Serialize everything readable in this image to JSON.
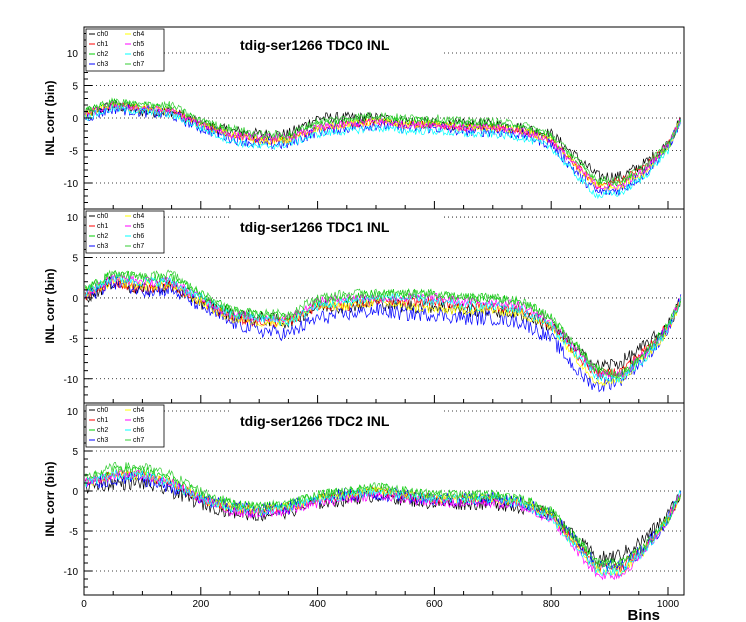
{
  "colors": {
    "ch0": "#000000",
    "ch1": "#ff0000",
    "ch2": "#00cc00",
    "ch3": "#0000ff",
    "ch4": "#ffff00",
    "ch5": "#ff00ff",
    "ch6": "#00ffff",
    "ch7": "#33cc33"
  },
  "chart_data": [
    {
      "type": "line",
      "title": "tdig-ser1266 TDC0 INL",
      "xlabel": "",
      "ylabel": "INL corr (bin)",
      "xlim": [
        0,
        1024
      ],
      "ylim": [
        -14,
        14
      ],
      "yticks": [
        -10,
        -5,
        0,
        5,
        10
      ],
      "xticks": [
        0,
        200,
        400,
        600,
        800,
        1000
      ],
      "grid": "horizontal dotted",
      "legend": "top-left",
      "x": [
        0,
        50,
        100,
        150,
        200,
        250,
        300,
        350,
        400,
        450,
        500,
        550,
        600,
        650,
        700,
        750,
        800,
        850,
        880,
        920,
        960,
        1000,
        1024
      ],
      "series": [
        {
          "name": "ch0",
          "values": [
            0.5,
            2.0,
            1.0,
            1.0,
            -1.0,
            -2.0,
            -2.5,
            -2.5,
            0,
            0,
            0,
            -0.5,
            -1.0,
            -1.0,
            -1.0,
            -1.5,
            -2.5,
            -6.5,
            -9.0,
            -9.0,
            -7.0,
            -4.0,
            0
          ]
        },
        {
          "name": "ch1",
          "values": [
            0.5,
            2.0,
            1.5,
            1.0,
            -1.0,
            -2.5,
            -3.5,
            -3.5,
            -1.5,
            -1.0,
            -0.5,
            -1.0,
            -1.0,
            -1.5,
            -1.5,
            -2.0,
            -3.5,
            -8.0,
            -10.5,
            -9.5,
            -7.5,
            -4.0,
            0
          ]
        },
        {
          "name": "ch2",
          "values": [
            1.0,
            2.5,
            2.0,
            1.5,
            -0.5,
            -2.0,
            -3.0,
            -3.0,
            -1.0,
            -0.5,
            0,
            -0.5,
            -0.5,
            -1.0,
            -1.0,
            -1.5,
            -3.0,
            -7.5,
            -10.0,
            -10.0,
            -8.0,
            -4.5,
            0
          ]
        },
        {
          "name": "ch3",
          "values": [
            0,
            1.5,
            1.0,
            0.5,
            -1.5,
            -3.0,
            -4.0,
            -4.0,
            -2.0,
            -1.5,
            -1.0,
            -1.5,
            -1.5,
            -2.0,
            -2.0,
            -2.5,
            -4.0,
            -9.0,
            -11.5,
            -11.0,
            -8.5,
            -4.5,
            0
          ]
        },
        {
          "name": "ch4",
          "values": [
            0.5,
            2.0,
            1.5,
            1.0,
            -1.0,
            -2.5,
            -3.5,
            -3.5,
            -1.5,
            -1.0,
            -0.5,
            -1.0,
            -1.0,
            -1.5,
            -1.5,
            -2.0,
            -3.5,
            -8.0,
            -10.5,
            -10.5,
            -8.5,
            -4.5,
            0
          ]
        },
        {
          "name": "ch5",
          "values": [
            0.5,
            2.0,
            1.5,
            1.0,
            -1.0,
            -2.5,
            -3.0,
            -3.0,
            -1.5,
            -1.0,
            -0.5,
            -1.0,
            -1.0,
            -1.5,
            -1.5,
            -2.0,
            -3.5,
            -8.0,
            -10.5,
            -10.5,
            -8.0,
            -4.0,
            0
          ]
        },
        {
          "name": "ch6",
          "values": [
            0,
            1.5,
            1.0,
            0.5,
            -1.5,
            -3.5,
            -4.5,
            -4.0,
            -2.5,
            -2.0,
            -1.5,
            -2.0,
            -2.0,
            -2.5,
            -2.5,
            -3.0,
            -4.5,
            -9.5,
            -12.0,
            -11.5,
            -9.0,
            -5.0,
            0
          ]
        },
        {
          "name": "ch7",
          "values": [
            1.0,
            2.5,
            2.0,
            2.0,
            -0.5,
            -1.5,
            -2.5,
            -2.5,
            -0.5,
            0,
            0.5,
            0,
            0,
            -0.5,
            -0.5,
            -1.0,
            -2.5,
            -7.0,
            -9.5,
            -9.5,
            -7.5,
            -4.0,
            0
          ]
        }
      ]
    },
    {
      "type": "line",
      "title": "tdig-ser1266 TDC1 INL",
      "xlabel": "",
      "ylabel": "INL corr (bin)",
      "xlim": [
        0,
        1024
      ],
      "ylim": [
        -13,
        11
      ],
      "yticks": [
        -10,
        -5,
        0,
        5,
        10
      ],
      "xticks": [
        0,
        200,
        400,
        600,
        800,
        1000
      ],
      "grid": "horizontal dotted",
      "legend": "top-left",
      "x": [
        0,
        50,
        100,
        150,
        200,
        250,
        300,
        350,
        400,
        450,
        500,
        550,
        600,
        650,
        700,
        750,
        800,
        850,
        880,
        920,
        960,
        1000,
        1024
      ],
      "series": [
        {
          "name": "ch0",
          "values": [
            0,
            2.0,
            1.0,
            1.5,
            -0.5,
            -2.0,
            -2.5,
            -3.0,
            -1.0,
            -1.0,
            -0.5,
            -1.0,
            -1.0,
            -1.5,
            -1.5,
            -2.0,
            -3.5,
            -7.0,
            -8.5,
            -8.0,
            -6.0,
            -3.5,
            0
          ]
        },
        {
          "name": "ch1",
          "values": [
            0,
            2.0,
            1.0,
            1.5,
            -0.5,
            -2.5,
            -3.0,
            -3.0,
            -1.0,
            -1.0,
            -0.5,
            -0.5,
            -0.5,
            -1.0,
            -1.0,
            -1.5,
            -3.5,
            -7.5,
            -9.5,
            -9.0,
            -6.5,
            -3.5,
            0
          ]
        },
        {
          "name": "ch2",
          "values": [
            1.0,
            3.0,
            2.5,
            2.5,
            0.5,
            -1.5,
            -2.0,
            -2.5,
            -0.5,
            0,
            0.5,
            0.5,
            0.5,
            0,
            0,
            -0.5,
            -2.5,
            -6.5,
            -9.0,
            -9.5,
            -7.0,
            -3.5,
            0
          ]
        },
        {
          "name": "ch3",
          "values": [
            0,
            2.0,
            1.0,
            1.0,
            -1.0,
            -3.0,
            -4.0,
            -4.5,
            -2.5,
            -2.0,
            -1.5,
            -2.0,
            -2.0,
            -2.5,
            -2.5,
            -3.0,
            -5.0,
            -9.5,
            -11.0,
            -10.0,
            -7.5,
            -4.0,
            0
          ]
        },
        {
          "name": "ch4",
          "values": [
            0.5,
            2.0,
            1.5,
            1.5,
            -0.5,
            -2.5,
            -3.0,
            -3.0,
            -1.0,
            -1.0,
            -0.5,
            -1.0,
            -1.5,
            -1.5,
            -1.5,
            -2.0,
            -3.5,
            -8.0,
            -10.5,
            -10.0,
            -7.5,
            -4.0,
            0
          ]
        },
        {
          "name": "ch5",
          "values": [
            0.5,
            2.5,
            2.0,
            2.0,
            0,
            -2.0,
            -2.5,
            -2.5,
            -0.5,
            0,
            0,
            0,
            0,
            -0.5,
            -0.5,
            -1.0,
            -3.0,
            -7.0,
            -9.5,
            -9.5,
            -7.0,
            -3.5,
            0
          ]
        },
        {
          "name": "ch6",
          "values": [
            0.5,
            2.5,
            2.0,
            2.0,
            0,
            -2.0,
            -2.5,
            -3.0,
            -1.0,
            -0.5,
            0,
            0,
            -0.5,
            -1.0,
            -1.0,
            -1.5,
            -3.5,
            -7.5,
            -10.0,
            -10.0,
            -7.5,
            -4.0,
            0
          ]
        },
        {
          "name": "ch7",
          "values": [
            1.0,
            3.0,
            2.5,
            3.0,
            0.5,
            -1.5,
            -2.0,
            -2.0,
            0,
            0.5,
            0.5,
            0.5,
            0.5,
            0,
            0,
            -0.5,
            -2.5,
            -6.5,
            -9.0,
            -9.5,
            -7.0,
            -3.5,
            0
          ]
        }
      ]
    },
    {
      "type": "line",
      "title": "tdig-ser1266 TDC2 INL",
      "xlabel": "Bins",
      "ylabel": "INL corr (bin)",
      "xlim": [
        0,
        1024
      ],
      "ylim": [
        -13,
        11
      ],
      "yticks": [
        -10,
        -5,
        0,
        5,
        10
      ],
      "xticks": [
        0,
        200,
        400,
        600,
        800,
        1000
      ],
      "grid": "horizontal dotted",
      "legend": "top-left",
      "x": [
        0,
        50,
        100,
        150,
        200,
        250,
        300,
        350,
        400,
        450,
        500,
        550,
        600,
        650,
        700,
        750,
        800,
        850,
        880,
        920,
        960,
        1000,
        1024
      ],
      "series": [
        {
          "name": "ch0",
          "values": [
            0.5,
            1.0,
            1.0,
            0,
            -1.5,
            -2.5,
            -3.0,
            -2.5,
            -1.5,
            -1.0,
            -0.5,
            -1.0,
            -1.5,
            -1.5,
            -1.5,
            -2.0,
            -3.0,
            -6.5,
            -8.5,
            -8.0,
            -6.0,
            -3.0,
            0
          ]
        },
        {
          "name": "ch1",
          "values": [
            1.0,
            2.0,
            2.0,
            1.0,
            -1.0,
            -2.0,
            -2.5,
            -2.0,
            -1.0,
            -0.5,
            0,
            -0.5,
            -1.0,
            -1.0,
            -1.0,
            -1.5,
            -3.0,
            -7.0,
            -9.5,
            -9.5,
            -7.0,
            -3.5,
            0
          ]
        },
        {
          "name": "ch2",
          "values": [
            1.5,
            2.5,
            2.5,
            1.5,
            -0.5,
            -1.5,
            -2.0,
            -1.5,
            -0.5,
            0,
            0.5,
            0,
            -0.5,
            -0.5,
            -0.5,
            -1.0,
            -2.5,
            -6.5,
            -9.0,
            -9.0,
            -7.0,
            -3.5,
            0
          ]
        },
        {
          "name": "ch3",
          "values": [
            0.5,
            1.5,
            1.5,
            0.5,
            -1.0,
            -2.0,
            -2.5,
            -2.0,
            -1.0,
            -0.5,
            -0.5,
            -0.5,
            -1.0,
            -1.0,
            -1.0,
            -1.5,
            -3.0,
            -7.0,
            -9.5,
            -9.5,
            -7.0,
            -3.5,
            0
          ]
        },
        {
          "name": "ch4",
          "values": [
            1.0,
            2.0,
            2.0,
            1.0,
            -1.0,
            -2.0,
            -2.5,
            -2.0,
            -1.0,
            -0.5,
            0,
            -0.5,
            -1.0,
            -1.0,
            -1.0,
            -1.5,
            -3.0,
            -7.5,
            -10.0,
            -10.0,
            -7.5,
            -3.5,
            0
          ]
        },
        {
          "name": "ch5",
          "values": [
            1.0,
            2.0,
            2.0,
            1.0,
            -1.0,
            -2.5,
            -3.0,
            -2.5,
            -1.5,
            -1.0,
            -0.5,
            -1.0,
            -1.5,
            -1.5,
            -1.5,
            -2.0,
            -3.5,
            -8.0,
            -10.5,
            -10.5,
            -7.5,
            -3.5,
            0
          ]
        },
        {
          "name": "ch6",
          "values": [
            1.0,
            2.0,
            2.0,
            1.0,
            -1.0,
            -2.0,
            -2.5,
            -2.0,
            -1.0,
            -0.5,
            0,
            -0.5,
            -1.0,
            -1.0,
            -1.0,
            -1.5,
            -3.5,
            -7.5,
            -10.0,
            -10.0,
            -7.5,
            -3.5,
            0
          ]
        },
        {
          "name": "ch7",
          "values": [
            1.5,
            3.0,
            3.0,
            2.0,
            0,
            -1.5,
            -2.0,
            -1.5,
            -0.5,
            0,
            0.5,
            0,
            -0.5,
            -0.5,
            -0.5,
            -1.0,
            -2.5,
            -6.5,
            -9.0,
            -9.0,
            -7.0,
            -3.5,
            0
          ]
        }
      ]
    }
  ]
}
